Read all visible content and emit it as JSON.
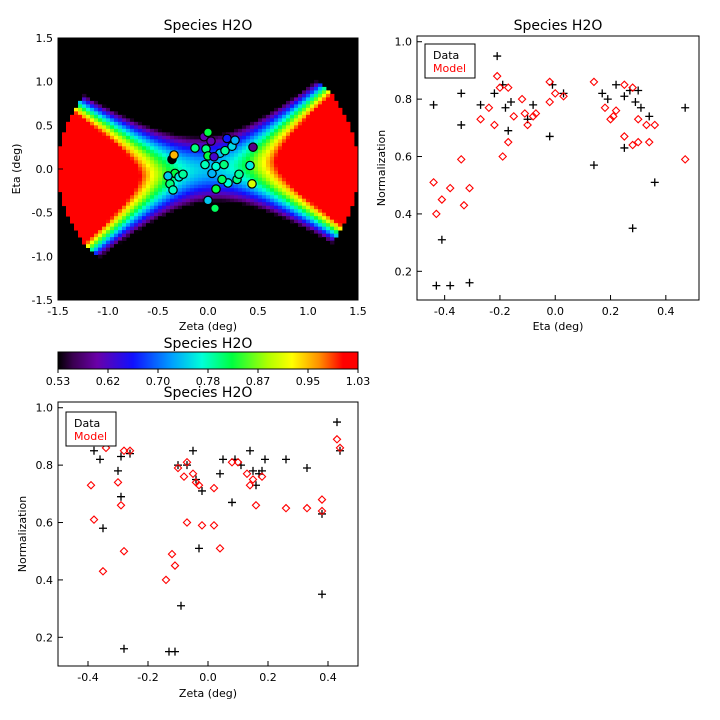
{
  "chart_data": [
    {
      "id": "map",
      "type": "heatmap",
      "title": "Species H2O",
      "xlabel": "Zeta (deg)",
      "ylabel": "Eta (deg)",
      "xlim": [
        -1.5,
        1.5
      ],
      "ylim": [
        -1.5,
        1.5
      ],
      "xticks": [
        "-1.5",
        "-1.0",
        "-0.5",
        "0.0",
        "0.5",
        "1.0",
        "1.5"
      ],
      "yticks": [
        "-1.5",
        "-1.0",
        "-0.5",
        "0.0",
        "0.5",
        "1.0",
        "1.5"
      ],
      "field_colormap": "rainbow",
      "points": [
        {
          "x": -0.36,
          "y": 0.11,
          "v": 0.53
        },
        {
          "x": -0.34,
          "y": 0.16,
          "v": 0.95
        },
        {
          "x": -0.33,
          "y": -0.05,
          "v": 0.82
        },
        {
          "x": -0.4,
          "y": -0.08,
          "v": 0.74
        },
        {
          "x": -0.38,
          "y": -0.17,
          "v": 0.8
        },
        {
          "x": -0.35,
          "y": -0.24,
          "v": 0.78
        },
        {
          "x": -0.29,
          "y": -0.09,
          "v": 0.76
        },
        {
          "x": -0.25,
          "y": -0.06,
          "v": 0.79
        },
        {
          "x": -0.13,
          "y": 0.24,
          "v": 0.8
        },
        {
          "x": -0.04,
          "y": 0.37,
          "v": 0.6
        },
        {
          "x": 0.0,
          "y": 0.42,
          "v": 0.82
        },
        {
          "x": 0.03,
          "y": 0.32,
          "v": 0.6
        },
        {
          "x": -0.02,
          "y": 0.23,
          "v": 0.8
        },
        {
          "x": 0.0,
          "y": 0.15,
          "v": 0.82
        },
        {
          "x": -0.03,
          "y": 0.05,
          "v": 0.78
        },
        {
          "x": 0.04,
          "y": -0.05,
          "v": 0.73
        },
        {
          "x": 0.08,
          "y": 0.03,
          "v": 0.77
        },
        {
          "x": 0.12,
          "y": 0.18,
          "v": 0.74
        },
        {
          "x": 0.17,
          "y": 0.21,
          "v": 0.79
        },
        {
          "x": 0.24,
          "y": 0.26,
          "v": 0.75
        },
        {
          "x": 0.19,
          "y": 0.35,
          "v": 0.66
        },
        {
          "x": 0.27,
          "y": 0.33,
          "v": 0.73
        },
        {
          "x": 0.45,
          "y": 0.25,
          "v": 0.58
        },
        {
          "x": 0.42,
          "y": 0.04,
          "v": 0.76
        },
        {
          "x": 0.29,
          "y": -0.12,
          "v": 0.8
        },
        {
          "x": 0.31,
          "y": -0.06,
          "v": 0.79
        },
        {
          "x": 0.44,
          "y": -0.17,
          "v": 0.9
        },
        {
          "x": 0.2,
          "y": -0.16,
          "v": 0.77
        },
        {
          "x": 0.14,
          "y": -0.12,
          "v": 0.81
        },
        {
          "x": 0.08,
          "y": -0.23,
          "v": 0.82
        },
        {
          "x": 0.0,
          "y": -0.36,
          "v": 0.74
        },
        {
          "x": 0.07,
          "y": -0.45,
          "v": 0.81
        },
        {
          "x": 0.06,
          "y": 0.14,
          "v": 0.62
        },
        {
          "x": 0.16,
          "y": 0.05,
          "v": 0.8
        }
      ]
    },
    {
      "id": "eta",
      "type": "scatter",
      "title": "Species H2O",
      "xlabel": "Eta (deg)",
      "ylabel": "Normalization",
      "xlim": [
        -0.5,
        0.52
      ],
      "ylim": [
        0.1,
        1.02
      ],
      "xticks": [
        -0.4,
        -0.2,
        0.0,
        0.2,
        0.4
      ],
      "xtick_labels": [
        "-0.4",
        "-0.2",
        "0.0",
        "0.2",
        "0.4"
      ],
      "yticks": [
        0.2,
        0.4,
        0.6,
        0.8,
        1.0
      ],
      "ytick_labels": [
        "0.2",
        "0.4",
        "0.6",
        "0.8",
        "1.0"
      ],
      "legend": [
        "Data",
        "Model"
      ],
      "legend_position": "top-left",
      "series": [
        {
          "name": "Data",
          "marker": "plus",
          "color": "#000000",
          "points": [
            [
              -0.44,
              0.78
            ],
            [
              -0.43,
              0.15
            ],
            [
              -0.41,
              0.31
            ],
            [
              -0.38,
              0.15
            ],
            [
              -0.34,
              0.82
            ],
            [
              -0.34,
              0.71
            ],
            [
              -0.31,
              0.16
            ],
            [
              -0.27,
              0.78
            ],
            [
              -0.22,
              0.82
            ],
            [
              -0.21,
              0.95
            ],
            [
              -0.19,
              0.85
            ],
            [
              -0.18,
              0.77
            ],
            [
              -0.17,
              0.69
            ],
            [
              -0.16,
              0.79
            ],
            [
              -0.1,
              0.73
            ],
            [
              -0.08,
              0.78
            ],
            [
              -0.02,
              0.67
            ],
            [
              -0.01,
              0.85
            ],
            [
              0.03,
              0.82
            ],
            [
              0.14,
              0.57
            ],
            [
              0.17,
              0.82
            ],
            [
              0.19,
              0.8
            ],
            [
              0.22,
              0.85
            ],
            [
              0.25,
              0.81
            ],
            [
              0.25,
              0.63
            ],
            [
              0.27,
              0.83
            ],
            [
              0.28,
              0.35
            ],
            [
              0.29,
              0.79
            ],
            [
              0.3,
              0.83
            ],
            [
              0.31,
              0.77
            ],
            [
              0.34,
              0.74
            ],
            [
              0.36,
              0.51
            ],
            [
              0.47,
              0.77
            ]
          ]
        },
        {
          "name": "Model",
          "marker": "diamond",
          "color": "#ff0000",
          "points": [
            [
              -0.44,
              0.51
            ],
            [
              -0.43,
              0.4
            ],
            [
              -0.41,
              0.45
            ],
            [
              -0.38,
              0.49
            ],
            [
              -0.34,
              0.59
            ],
            [
              -0.33,
              0.43
            ],
            [
              -0.31,
              0.49
            ],
            [
              -0.27,
              0.73
            ],
            [
              -0.24,
              0.77
            ],
            [
              -0.22,
              0.71
            ],
            [
              -0.21,
              0.88
            ],
            [
              -0.2,
              0.84
            ],
            [
              -0.19,
              0.6
            ],
            [
              -0.17,
              0.65
            ],
            [
              -0.17,
              0.84
            ],
            [
              -0.15,
              0.74
            ],
            [
              -0.12,
              0.8
            ],
            [
              -0.11,
              0.75
            ],
            [
              -0.1,
              0.71
            ],
            [
              -0.08,
              0.74
            ],
            [
              -0.07,
              0.75
            ],
            [
              -0.02,
              0.79
            ],
            [
              -0.02,
              0.86
            ],
            [
              0.0,
              0.82
            ],
            [
              0.03,
              0.81
            ],
            [
              0.14,
              0.86
            ],
            [
              0.18,
              0.77
            ],
            [
              0.2,
              0.73
            ],
            [
              0.21,
              0.74
            ],
            [
              0.22,
              0.76
            ],
            [
              0.25,
              0.85
            ],
            [
              0.25,
              0.67
            ],
            [
              0.28,
              0.84
            ],
            [
              0.28,
              0.64
            ],
            [
              0.3,
              0.65
            ],
            [
              0.3,
              0.73
            ],
            [
              0.33,
              0.71
            ],
            [
              0.36,
              0.71
            ],
            [
              0.34,
              0.65
            ],
            [
              0.47,
              0.59
            ]
          ]
        }
      ]
    },
    {
      "id": "zeta",
      "type": "scatter",
      "title": "Species H2O",
      "xlabel": "Zeta (deg)",
      "ylabel": "Normalization",
      "xlim": [
        -0.5,
        0.5
      ],
      "ylim": [
        0.1,
        1.02
      ],
      "xticks": [
        -0.4,
        -0.2,
        0.0,
        0.2,
        0.4
      ],
      "xtick_labels": [
        "-0.4",
        "-0.2",
        "0.0",
        "0.2",
        "0.4"
      ],
      "yticks": [
        0.2,
        0.4,
        0.6,
        0.8,
        1.0
      ],
      "ytick_labels": [
        "0.2",
        "0.4",
        "0.6",
        "0.8",
        "1.0"
      ],
      "legend": [
        "Data",
        "Model"
      ],
      "legend_position": "top-left",
      "series": [
        {
          "name": "Data",
          "marker": "plus",
          "color": "#000000",
          "points": [
            [
              -0.38,
              0.85
            ],
            [
              -0.36,
              0.82
            ],
            [
              -0.35,
              0.58
            ],
            [
              -0.3,
              0.78
            ],
            [
              -0.29,
              0.83
            ],
            [
              -0.29,
              0.69
            ],
            [
              -0.28,
              0.16
            ],
            [
              -0.26,
              0.84
            ],
            [
              -0.13,
              0.15
            ],
            [
              -0.11,
              0.15
            ],
            [
              -0.1,
              0.8
            ],
            [
              -0.09,
              0.31
            ],
            [
              -0.07,
              0.8
            ],
            [
              -0.05,
              0.85
            ],
            [
              -0.04,
              0.75
            ],
            [
              -0.03,
              0.51
            ],
            [
              -0.02,
              0.71
            ],
            [
              0.04,
              0.77
            ],
            [
              0.05,
              0.82
            ],
            [
              0.08,
              0.67
            ],
            [
              0.09,
              0.82
            ],
            [
              0.11,
              0.8
            ],
            [
              0.14,
              0.85
            ],
            [
              0.15,
              0.78
            ],
            [
              0.16,
              0.73
            ],
            [
              0.17,
              0.77
            ],
            [
              0.18,
              0.78
            ],
            [
              0.19,
              0.82
            ],
            [
              0.26,
              0.82
            ],
            [
              0.33,
              0.79
            ],
            [
              0.38,
              0.35
            ],
            [
              0.38,
              0.63
            ],
            [
              0.43,
              0.95
            ],
            [
              0.44,
              0.85
            ]
          ]
        },
        {
          "name": "Model",
          "marker": "diamond",
          "color": "#ff0000",
          "points": [
            [
              -0.39,
              0.73
            ],
            [
              -0.38,
              0.61
            ],
            [
              -0.35,
              0.43
            ],
            [
              -0.34,
              0.86
            ],
            [
              -0.3,
              0.74
            ],
            [
              -0.29,
              0.66
            ],
            [
              -0.28,
              0.5
            ],
            [
              -0.28,
              0.85
            ],
            [
              -0.26,
              0.85
            ],
            [
              -0.14,
              0.4
            ],
            [
              -0.12,
              0.49
            ],
            [
              -0.11,
              0.45
            ],
            [
              -0.1,
              0.79
            ],
            [
              -0.08,
              0.76
            ],
            [
              -0.07,
              0.81
            ],
            [
              -0.07,
              0.6
            ],
            [
              -0.05,
              0.77
            ],
            [
              -0.04,
              0.74
            ],
            [
              -0.03,
              0.73
            ],
            [
              -0.02,
              0.59
            ],
            [
              0.02,
              0.59
            ],
            [
              0.02,
              0.72
            ],
            [
              0.04,
              0.51
            ],
            [
              0.08,
              0.81
            ],
            [
              0.1,
              0.81
            ],
            [
              0.13,
              0.77
            ],
            [
              0.14,
              0.73
            ],
            [
              0.15,
              0.75
            ],
            [
              0.16,
              0.66
            ],
            [
              0.18,
              0.76
            ],
            [
              0.26,
              0.65
            ],
            [
              0.33,
              0.65
            ],
            [
              0.38,
              0.68
            ],
            [
              0.38,
              0.64
            ],
            [
              0.43,
              0.89
            ],
            [
              0.44,
              0.86
            ]
          ]
        }
      ]
    }
  ],
  "colorbar": {
    "title": "Species H2O",
    "range": [
      0.53,
      1.03
    ],
    "tick_labels": [
      "0.53",
      "0.62",
      "0.70",
      "0.78",
      "0.87",
      "0.95",
      "1.03"
    ]
  }
}
